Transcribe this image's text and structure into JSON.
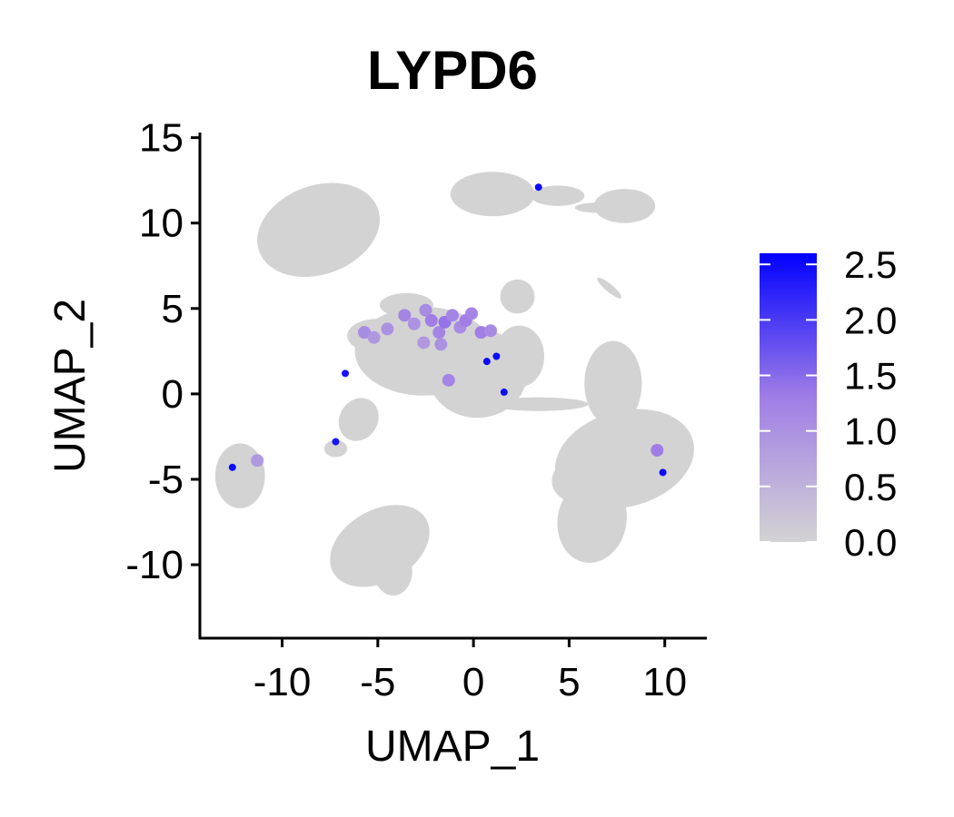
{
  "chart_data": {
    "type": "scatter",
    "title": "LYPD6",
    "xlabel": "UMAP_1",
    "ylabel": "UMAP_2",
    "xlim": [
      -14.3,
      12.2
    ],
    "ylim": [
      -14.3,
      15.3
    ],
    "x_ticks": [
      -10,
      -5,
      0,
      5,
      10
    ],
    "x_tick_labels": [
      "-10",
      "-5",
      "0",
      "5",
      "10"
    ],
    "y_ticks": [
      -10,
      -5,
      0,
      5,
      10,
      15
    ],
    "y_tick_labels": [
      "-10",
      "-5",
      "0",
      "5",
      "10",
      "15"
    ],
    "grid": false,
    "color_scale": {
      "low_color": "#d3d3d3",
      "high_color": "#0000ff",
      "min": 0.0,
      "max": 2.6,
      "ticks": [
        0.0,
        0.5,
        1.0,
        1.5,
        2.0,
        2.5
      ],
      "tick_labels": [
        "0.0",
        "0.5",
        "1.0",
        "1.5",
        "2.0",
        "2.5"
      ],
      "legend_position": "right"
    },
    "clusters": [
      {
        "cx": -8.1,
        "cy": 9.6,
        "rx": 3.3,
        "ry": 2.6,
        "rot": -20
      },
      {
        "cx": -4.9,
        "cy": -8.9,
        "rx": 2.8,
        "ry": 2.1,
        "rot": -30
      },
      {
        "cx": -4.2,
        "cy": -10.4,
        "rx": 1.0,
        "ry": 1.4,
        "rot": 0
      },
      {
        "cx": -12.2,
        "cy": -4.8,
        "rx": 1.3,
        "ry": 1.9,
        "rot": 0
      },
      {
        "cx": -7.2,
        "cy": -3.2,
        "rx": 0.6,
        "ry": 0.5,
        "rot": 0
      },
      {
        "cx": 1.0,
        "cy": 11.7,
        "rx": 2.2,
        "ry": 1.3,
        "rot": 0
      },
      {
        "cx": 4.4,
        "cy": 11.6,
        "rx": 1.4,
        "ry": 0.6,
        "rot": 0
      },
      {
        "cx": 7.9,
        "cy": 11.0,
        "rx": 1.6,
        "ry": 1.0,
        "rot": 0
      },
      {
        "cx": 6.5,
        "cy": 10.9,
        "rx": 1.2,
        "ry": 0.3,
        "rot": 0
      },
      {
        "cx": 2.3,
        "cy": 5.7,
        "rx": 0.9,
        "ry": 1.0,
        "rot": 0
      },
      {
        "cx": 7.1,
        "cy": 6.2,
        "rx": 0.2,
        "ry": 0.9,
        "rot": -50
      },
      {
        "cx": -2.6,
        "cy": 2.5,
        "rx": 3.6,
        "ry": 2.6,
        "rot": 0
      },
      {
        "cx": 0.2,
        "cy": 1.2,
        "rx": 2.6,
        "ry": 2.6,
        "rot": 0
      },
      {
        "cx": -5.0,
        "cy": 3.4,
        "rx": 1.6,
        "ry": 1.0,
        "rot": 0
      },
      {
        "cx": -6.0,
        "cy": -1.5,
        "rx": 1.0,
        "ry": 1.3,
        "rot": 30
      },
      {
        "cx": -3.5,
        "cy": 5.2,
        "rx": 1.4,
        "ry": 0.7,
        "rot": 0
      },
      {
        "cx": 2.4,
        "cy": 2.2,
        "rx": 1.3,
        "ry": 1.8,
        "rot": 0
      },
      {
        "cx": 3.4,
        "cy": -0.6,
        "rx": 2.6,
        "ry": 0.4,
        "rot": 0
      },
      {
        "cx": 7.9,
        "cy": -3.8,
        "rx": 3.7,
        "ry": 2.8,
        "rot": -15
      },
      {
        "cx": 7.3,
        "cy": 0.6,
        "rx": 1.5,
        "ry": 2.5,
        "rot": 0
      },
      {
        "cx": 6.2,
        "cy": -7.4,
        "rx": 1.8,
        "ry": 2.5,
        "rot": 10
      },
      {
        "cx": 5.5,
        "cy": -5.1,
        "rx": 1.4,
        "ry": 1.3,
        "rot": 0
      }
    ],
    "highlighted_points": [
      {
        "x": -5.7,
        "y": 3.6,
        "value": 1.1
      },
      {
        "x": -5.2,
        "y": 3.3,
        "value": 0.9
      },
      {
        "x": -4.5,
        "y": 3.8,
        "value": 1.0
      },
      {
        "x": -3.6,
        "y": 4.6,
        "value": 1.2
      },
      {
        "x": -3.1,
        "y": 4.1,
        "value": 1.0
      },
      {
        "x": -2.5,
        "y": 4.9,
        "value": 1.1
      },
      {
        "x": -2.2,
        "y": 4.3,
        "value": 1.3
      },
      {
        "x": -1.8,
        "y": 3.6,
        "value": 1.2
      },
      {
        "x": -1.5,
        "y": 4.2,
        "value": 1.4
      },
      {
        "x": -1.1,
        "y": 4.6,
        "value": 1.2
      },
      {
        "x": -0.7,
        "y": 3.9,
        "value": 1.1
      },
      {
        "x": -0.4,
        "y": 4.3,
        "value": 1.3
      },
      {
        "x": -0.1,
        "y": 4.7,
        "value": 1.2
      },
      {
        "x": 0.4,
        "y": 3.6,
        "value": 1.3
      },
      {
        "x": 0.9,
        "y": 3.7,
        "value": 1.1
      },
      {
        "x": -1.3,
        "y": 0.8,
        "value": 1.2
      },
      {
        "x": -1.7,
        "y": 2.9,
        "value": 1.0
      },
      {
        "x": -2.6,
        "y": 3.0,
        "value": 0.9
      },
      {
        "x": 9.6,
        "y": -3.3,
        "value": 1.3
      },
      {
        "x": -11.3,
        "y": -3.9,
        "value": 0.9
      },
      {
        "x": 1.2,
        "y": 2.2,
        "value": 2.5
      },
      {
        "x": 1.6,
        "y": 0.1,
        "value": 2.5
      },
      {
        "x": -6.7,
        "y": 1.2,
        "value": 2.4
      },
      {
        "x": 3.4,
        "y": 12.1,
        "value": 2.5
      },
      {
        "x": 9.9,
        "y": -4.6,
        "value": 2.5
      },
      {
        "x": -12.6,
        "y": -4.3,
        "value": 2.5
      },
      {
        "x": -7.2,
        "y": -2.8,
        "value": 2.4
      },
      {
        "x": 0.7,
        "y": 1.9,
        "value": 2.5
      }
    ]
  }
}
